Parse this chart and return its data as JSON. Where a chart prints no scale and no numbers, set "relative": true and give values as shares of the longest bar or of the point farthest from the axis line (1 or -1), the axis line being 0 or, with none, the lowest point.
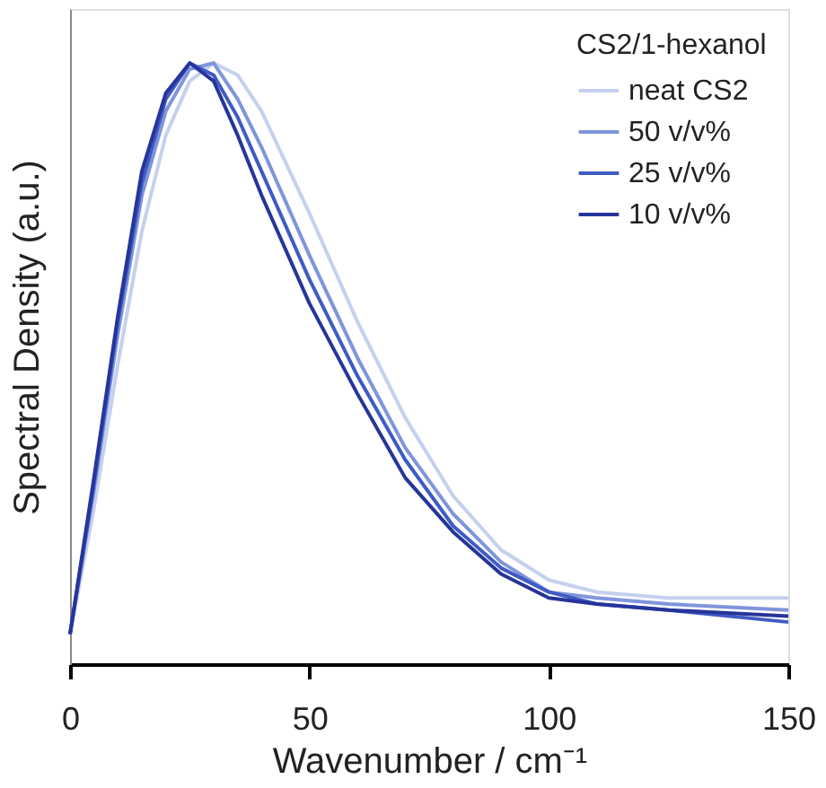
{
  "chart_data": {
    "type": "line",
    "relative": true,
    "xlabel": "Wavenumber / cm⁻¹",
    "ylabel": "Spectral Density (a.u.)",
    "legend_title": "CS2/1-hexanol",
    "legend": "top right",
    "grid": false,
    "tick_labels": "x",
    "line_style": "solid",
    "marker": "none",
    "x": [
      0,
      5,
      10,
      15,
      20,
      25,
      30,
      35,
      40,
      50,
      60,
      70,
      80,
      90,
      100,
      110,
      125,
      150
    ],
    "xlim": [
      0,
      150
    ],
    "xticks": [
      0,
      50,
      100,
      150
    ],
    "series": [
      {
        "name": "neat CS2",
        "color": "#c5d0ee",
        "values": [
          0.05,
          0.26,
          0.5,
          0.72,
          0.88,
          0.97,
          1.0,
          0.98,
          0.92,
          0.75,
          0.57,
          0.41,
          0.28,
          0.19,
          0.14,
          0.12,
          0.11,
          0.11
        ]
      },
      {
        "name": "50 v/v%",
        "color": "#7f95dc",
        "values": [
          0.05,
          0.29,
          0.55,
          0.78,
          0.92,
          0.99,
          1.0,
          0.94,
          0.86,
          0.68,
          0.51,
          0.36,
          0.25,
          0.17,
          0.12,
          0.11,
          0.1,
          0.09
        ]
      },
      {
        "name": "25 v/v%",
        "color": "#3f5bc4",
        "values": [
          0.05,
          0.3,
          0.57,
          0.8,
          0.94,
          1.0,
          0.98,
          0.91,
          0.82,
          0.64,
          0.48,
          0.34,
          0.23,
          0.16,
          0.12,
          0.1,
          0.09,
          0.07
        ]
      },
      {
        "name": "10 v/v%",
        "color": "#26359a",
        "values": [
          0.05,
          0.31,
          0.58,
          0.82,
          0.95,
          1.0,
          0.97,
          0.88,
          0.78,
          0.6,
          0.45,
          0.31,
          0.22,
          0.15,
          0.11,
          0.1,
          0.09,
          0.08
        ]
      }
    ]
  }
}
